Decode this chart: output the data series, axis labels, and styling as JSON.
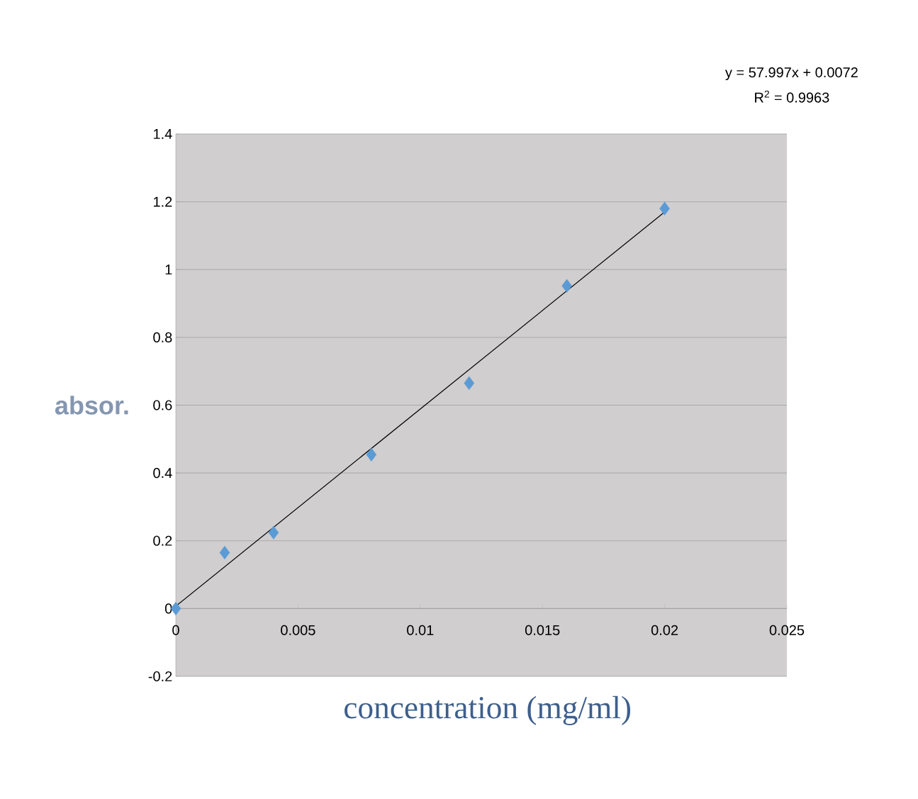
{
  "chart_data": {
    "type": "scatter",
    "xlabel": "concentration (mg/ml)",
    "ylabel": "absor.",
    "annotations": [
      "y = 57.997x + 0.0072",
      "R$^{2}$ = 0.9963"
    ],
    "xlim": [
      0,
      0.025
    ],
    "ylim": [
      -0.2,
      1.4
    ],
    "xticks": [
      0,
      0.005,
      0.01,
      0.015,
      0.02,
      0.025
    ],
    "yticks": [
      -0.2,
      0,
      0.2,
      0.4,
      0.6,
      0.8,
      1,
      1.2,
      1.4
    ],
    "grid": "y",
    "series": [
      {
        "marker": "diamond",
        "color": "#5b9bd5",
        "x": [
          0,
          0.002,
          0.004,
          0.008,
          0.012,
          0.016,
          0.02
        ],
        "values": [
          0,
          0.165,
          0.224,
          0.454,
          0.665,
          0.952,
          1.18
        ]
      },
      {
        "type": "line",
        "color": "#000000",
        "x": [
          0,
          0.02
        ],
        "values": [
          0.007,
          1.17
        ]
      }
    ]
  }
}
